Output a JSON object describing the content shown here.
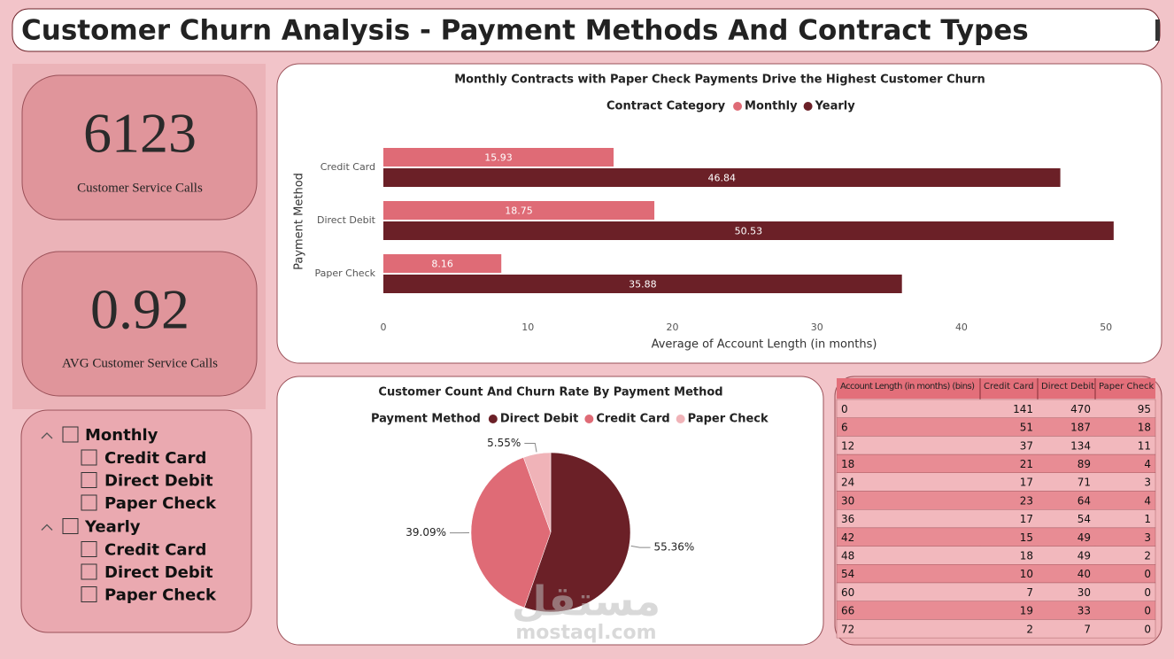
{
  "header": {
    "title": "Customer Churn Analysis - Payment Methods And Contract Types"
  },
  "kpis": [
    {
      "value": 6123,
      "label": "Customer Service Calls"
    },
    {
      "value": 0.92,
      "label": "AVG Customer Service Calls"
    }
  ],
  "slicer": {
    "groups": [
      {
        "label": "Monthly",
        "items": [
          "Credit Card",
          "Direct Debit",
          "Paper Check"
        ]
      },
      {
        "label": "Yearly",
        "items": [
          "Credit Card",
          "Direct Debit",
          "Paper Check"
        ]
      }
    ]
  },
  "chart_data": [
    {
      "type": "bar",
      "orientation": "horizontal",
      "title": "Monthly Contracts with Paper Check Payments Drive the Highest Customer Churn",
      "legend_title": "Contract Category",
      "categories": [
        "Credit Card",
        "Direct Debit",
        "Paper Check"
      ],
      "series": [
        {
          "name": "Monthly",
          "color": "#df6b76",
          "values": [
            15.93,
            18.75,
            8.16
          ]
        },
        {
          "name": "Yearly",
          "color": "#6b2027",
          "values": [
            46.84,
            50.53,
            35.88
          ]
        }
      ],
      "xlabel": "Average of Account Length (in months)",
      "ylabel": "Payment Method",
      "xlim": [
        0,
        52.5
      ],
      "xticks": [
        0,
        10,
        20,
        30,
        40,
        50
      ],
      "grid": false
    },
    {
      "type": "pie",
      "title": "Customer Count And Churn Rate By Payment Method",
      "legend_title": "Payment Method",
      "categories": [
        "Direct Debit",
        "Credit Card",
        "Paper Check"
      ],
      "values": [
        55.36,
        39.09,
        5.55
      ],
      "value_labels": [
        "55.36%",
        "39.09%",
        "5.55%"
      ],
      "colors": [
        "#6b2027",
        "#df6b76",
        "#f0b3b8"
      ]
    }
  ],
  "table": {
    "header": [
      "Account Length (in months) (bins)",
      "Credit Card",
      "Direct Debit",
      "Paper Check"
    ],
    "rows": [
      [
        0,
        141,
        470,
        95
      ],
      [
        6,
        51,
        187,
        18
      ],
      [
        12,
        37,
        134,
        11
      ],
      [
        18,
        21,
        89,
        4
      ],
      [
        24,
        17,
        71,
        3
      ],
      [
        30,
        23,
        64,
        4
      ],
      [
        36,
        17,
        54,
        1
      ],
      [
        42,
        15,
        49,
        3
      ],
      [
        48,
        18,
        49,
        2
      ],
      [
        54,
        10,
        40,
        0
      ],
      [
        60,
        7,
        30,
        0
      ],
      [
        66,
        19,
        33,
        0
      ],
      [
        72,
        2,
        7,
        0
      ]
    ]
  },
  "watermark": {
    "logo": "مستقل",
    "text": "mostaql.com"
  }
}
